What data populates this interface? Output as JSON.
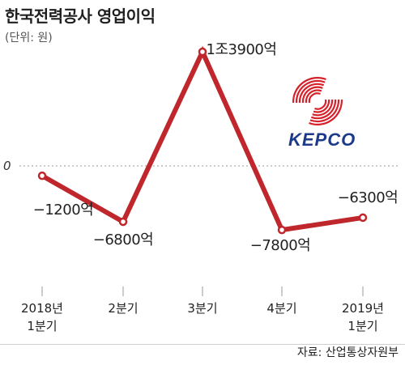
{
  "header": {
    "title": "한국전력공사 영업이익",
    "unit": "(단위: 원)"
  },
  "source": "자료: 산업통상자원부",
  "logo": {
    "text": "KEPCO",
    "color": "#d6202a",
    "text_color": "#1d3a8a"
  },
  "colors": {
    "line": "#c0272d",
    "marker_fill": "#ffffff",
    "zero_line": "#9a9a9a",
    "tick": "#999999"
  },
  "chart_data": {
    "type": "line",
    "categories": [
      "2018년\n1분기",
      "2분기",
      "3분기",
      "4분기",
      "2019년\n1분기"
    ],
    "values": [
      -1200,
      -6800,
      13900,
      -7800,
      -6300
    ],
    "data_labels": [
      "−1200억",
      "−6800억",
      "1조3900억",
      "−7800억",
      "−6300억"
    ],
    "zero_label": "0",
    "ylim": [
      -10000,
      15000
    ],
    "grid": false
  }
}
